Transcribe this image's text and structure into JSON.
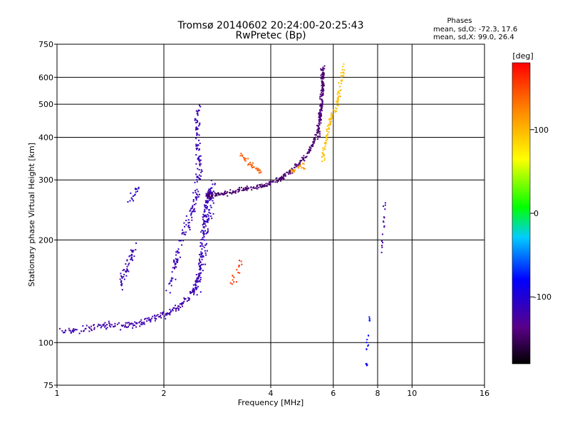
{
  "chart_data": {
    "type": "scatter",
    "title_line1": "Tromsø 20140602 20:24:00-20:25:43",
    "title_line2": "RwPretec (Bp)",
    "stats": {
      "heading": "Phases",
      "line1": "mean, sd,O: -72.3, 17.6",
      "line2": "mean, sd,X:  99.0, 26.4"
    },
    "xlabel": "Frequency [MHz]",
    "ylabel": "Stationary phase Virtual Height [km]",
    "x_scale": "log",
    "y_scale": "log",
    "xlim": [
      1,
      16
    ],
    "ylim": [
      75,
      750
    ],
    "x_ticks": [
      {
        "value": 1,
        "label": "1"
      },
      {
        "value": 2,
        "label": "2"
      },
      {
        "value": 4,
        "label": "4"
      },
      {
        "value": 6,
        "label": "6"
      },
      {
        "value": 8,
        "label": "8"
      },
      {
        "value": 10,
        "label": "10"
      },
      {
        "value": 16,
        "label": "16"
      }
    ],
    "x_gridlines": [
      2,
      4,
      6,
      8,
      10
    ],
    "y_ticks": [
      {
        "value": 75,
        "label": "75"
      },
      {
        "value": 100,
        "label": "100"
      },
      {
        "value": 200,
        "label": "200"
      },
      {
        "value": 300,
        "label": "300"
      },
      {
        "value": 400,
        "label": "400"
      },
      {
        "value": 500,
        "label": "500"
      },
      {
        "value": 600,
        "label": "600"
      },
      {
        "value": 750,
        "label": "750"
      }
    ],
    "y_gridlines": [
      100,
      200,
      300,
      400,
      500,
      600
    ],
    "grid": true,
    "colorbar": {
      "label": "[deg]",
      "range": [
        -180,
        180
      ],
      "ticks": [
        {
          "value": 100,
          "label": "100"
        },
        {
          "value": 0,
          "label": "0"
        },
        {
          "value": -100,
          "label": "-100"
        }
      ]
    },
    "traces": [
      {
        "phase": -120,
        "spread": 0.035,
        "density": 5,
        "path": [
          [
            1.02,
            108
          ],
          [
            1.15,
            109
          ],
          [
            1.3,
            111
          ],
          [
            1.45,
            113
          ],
          [
            1.6,
            112
          ],
          [
            1.75,
            115
          ],
          [
            1.9,
            118
          ],
          [
            2.05,
            122
          ],
          [
            2.2,
            127
          ],
          [
            2.35,
            135
          ],
          [
            2.45,
            145
          ],
          [
            2.52,
            160
          ],
          [
            2.56,
            200
          ],
          [
            2.6,
            240
          ],
          [
            2.65,
            270
          ],
          [
            2.7,
            280
          ]
        ]
      },
      {
        "phase": -115,
        "spread": 0.05,
        "density": 4,
        "path": [
          [
            1.5,
            145
          ],
          [
            1.55,
            160
          ],
          [
            1.6,
            175
          ],
          [
            1.65,
            190
          ]
        ]
      },
      {
        "phase": -115,
        "spread": 0.06,
        "density": 5,
        "path": [
          [
            2.05,
            140
          ],
          [
            2.15,
            170
          ],
          [
            2.25,
            200
          ],
          [
            2.35,
            230
          ],
          [
            2.45,
            250
          ],
          [
            2.5,
            290
          ],
          [
            2.52,
            330
          ],
          [
            2.5,
            380
          ],
          [
            2.48,
            430
          ],
          [
            2.5,
            490
          ]
        ]
      },
      {
        "phase": -110,
        "spread": 0.07,
        "density": 6,
        "path": [
          [
            2.45,
            140
          ],
          [
            2.55,
            170
          ],
          [
            2.6,
            200
          ],
          [
            2.65,
            230
          ],
          [
            2.7,
            260
          ],
          [
            2.75,
            290
          ]
        ]
      },
      {
        "phase": -145,
        "spread": 0.025,
        "density": 6,
        "path": [
          [
            2.65,
            270
          ],
          [
            2.8,
            272
          ],
          [
            3.0,
            275
          ],
          [
            3.3,
            280
          ],
          [
            3.6,
            285
          ],
          [
            3.9,
            290
          ],
          [
            4.2,
            300
          ],
          [
            4.5,
            315
          ],
          [
            4.8,
            335
          ],
          [
            5.1,
            360
          ],
          [
            5.3,
            390
          ],
          [
            5.45,
            430
          ],
          [
            5.55,
            480
          ],
          [
            5.6,
            540
          ],
          [
            5.62,
            600
          ],
          [
            5.65,
            640
          ]
        ]
      },
      {
        "phase": -140,
        "spread": 0.03,
        "density": 4,
        "path": [
          [
            5.45,
            400
          ],
          [
            5.5,
            460
          ],
          [
            5.55,
            520
          ],
          [
            5.6,
            580
          ],
          [
            5.58,
            640
          ]
        ]
      },
      {
        "phase": 140,
        "spread": 0.03,
        "density": 3,
        "path": [
          [
            3.3,
            355
          ],
          [
            3.45,
            340
          ],
          [
            3.6,
            325
          ],
          [
            3.75,
            318
          ]
        ]
      },
      {
        "phase": 115,
        "spread": 0.03,
        "density": 3,
        "path": [
          [
            4.5,
            315
          ],
          [
            4.8,
            325
          ],
          [
            5.0,
            330
          ]
        ]
      },
      {
        "phase": 95,
        "spread": 0.04,
        "density": 4,
        "path": [
          [
            5.6,
            340
          ],
          [
            5.7,
            380
          ],
          [
            5.8,
            420
          ],
          [
            5.9,
            450
          ],
          [
            6.1,
            480
          ],
          [
            6.2,
            520
          ],
          [
            6.3,
            580
          ],
          [
            6.4,
            640
          ]
        ]
      },
      {
        "phase": 160,
        "spread": 0.05,
        "density": 2,
        "path": [
          [
            3.1,
            150
          ],
          [
            3.2,
            160
          ],
          [
            3.3,
            170
          ]
        ]
      },
      {
        "phase": -100,
        "spread": 0.05,
        "density": 2,
        "path": [
          [
            1.6,
            255
          ],
          [
            1.65,
            270
          ],
          [
            1.7,
            285
          ]
        ]
      },
      {
        "phase": -80,
        "spread": 0.03,
        "density": 1,
        "path": [
          [
            7.4,
            80
          ],
          [
            7.45,
            90
          ],
          [
            7.5,
            100
          ],
          [
            7.55,
            110
          ],
          [
            7.6,
            120
          ]
        ]
      },
      {
        "phase": -120,
        "spread": 0.02,
        "density": 1,
        "path": [
          [
            8.2,
            185
          ],
          [
            8.25,
            200
          ],
          [
            8.3,
            220
          ],
          [
            8.35,
            240
          ],
          [
            8.4,
            260
          ]
        ]
      }
    ]
  }
}
